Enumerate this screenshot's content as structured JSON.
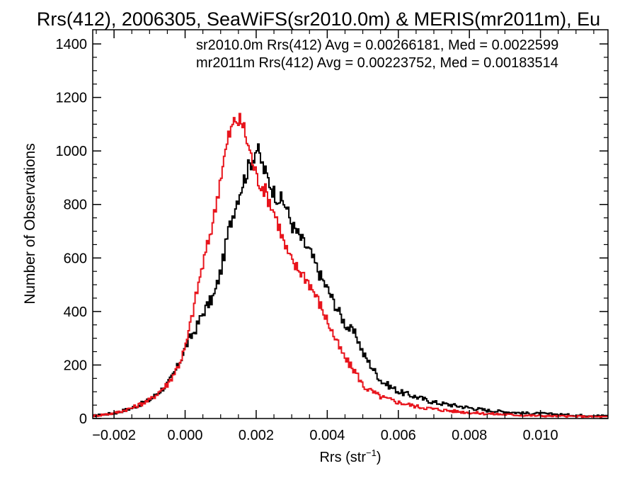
{
  "chart_data": {
    "type": "line",
    "title": "Rrs(412), 2006305, SeaWiFS(sr2010.0m) & MERIS(mr2011m), Eu",
    "xlabel": "Rrs (str",
    "xlabel_sup": "−1",
    "xlabel_close": ")",
    "ylabel": "Number of Observations",
    "xlim": [
      -0.0026,
      0.0119
    ],
    "ylim": [
      0,
      1400
    ],
    "x_ticks": [
      -0.002,
      0.0,
      0.002,
      0.004,
      0.006,
      0.008,
      0.01
    ],
    "x_tick_labels": [
      "−0.002",
      "0.000",
      "0.002",
      "0.004",
      "0.006",
      "0.008",
      "0.010"
    ],
    "y_ticks": [
      0,
      200,
      400,
      600,
      800,
      1000,
      1200,
      1400
    ],
    "y_tick_labels": [
      "0",
      "200",
      "400",
      "600",
      "800",
      "1000",
      "1200",
      "1400"
    ],
    "grid": false,
    "legend_position": "top-right",
    "annotations": [
      {
        "text": "sr2010.0m Rrs(412) Avg = 0.00266181, Med = 0.0022599",
        "color": "#000000"
      },
      {
        "text": "mr2011m Rrs(412) Avg = 0.00223752, Med = 0.00183514",
        "color": "#e8141c"
      }
    ],
    "series": [
      {
        "name": "sr2010.0m",
        "color": "#000000",
        "style": "step",
        "x": [
          -0.0026,
          -0.002,
          -0.0015,
          -0.001,
          -0.0005,
          -0.0002,
          0.0,
          0.0003,
          0.0005,
          0.0008,
          0.001,
          0.0012,
          0.0014,
          0.0016,
          0.0018,
          0.002,
          0.0022,
          0.0025,
          0.0028,
          0.003,
          0.0033,
          0.0035,
          0.0038,
          0.004,
          0.0043,
          0.0045,
          0.0048,
          0.005,
          0.0053,
          0.0055,
          0.006,
          0.0065,
          0.007,
          0.0075,
          0.008,
          0.0085,
          0.009,
          0.0095,
          0.01,
          0.0105,
          0.011,
          0.0119
        ],
        "y": [
          10,
          20,
          40,
          70,
          130,
          200,
          270,
          340,
          400,
          460,
          560,
          700,
          800,
          880,
          950,
          1010,
          930,
          840,
          800,
          720,
          660,
          620,
          530,
          480,
          400,
          350,
          310,
          240,
          180,
          140,
          100,
          80,
          60,
          50,
          40,
          30,
          25,
          20,
          18,
          15,
          12,
          10
        ]
      },
      {
        "name": "mr2011m",
        "color": "#e8141c",
        "style": "step",
        "x": [
          -0.0026,
          -0.002,
          -0.0015,
          -0.001,
          -0.0005,
          -0.0002,
          0.0,
          0.0002,
          0.0004,
          0.0006,
          0.0008,
          0.001,
          0.0012,
          0.0014,
          0.0016,
          0.0018,
          0.002,
          0.0022,
          0.0024,
          0.0026,
          0.0028,
          0.003,
          0.0033,
          0.0035,
          0.0038,
          0.004,
          0.0043,
          0.0045,
          0.0048,
          0.005,
          0.0055,
          0.006,
          0.0065,
          0.007,
          0.0075,
          0.008,
          0.0085,
          0.009,
          0.0095,
          0.01,
          0.011,
          0.0119
        ],
        "y": [
          10,
          20,
          40,
          70,
          130,
          200,
          270,
          400,
          530,
          640,
          760,
          920,
          1050,
          1120,
          1100,
          1000,
          900,
          860,
          800,
          730,
          640,
          580,
          540,
          500,
          420,
          360,
          270,
          220,
          170,
          120,
          80,
          60,
          45,
          35,
          28,
          22,
          18,
          15,
          12,
          10,
          8,
          6
        ]
      }
    ]
  }
}
